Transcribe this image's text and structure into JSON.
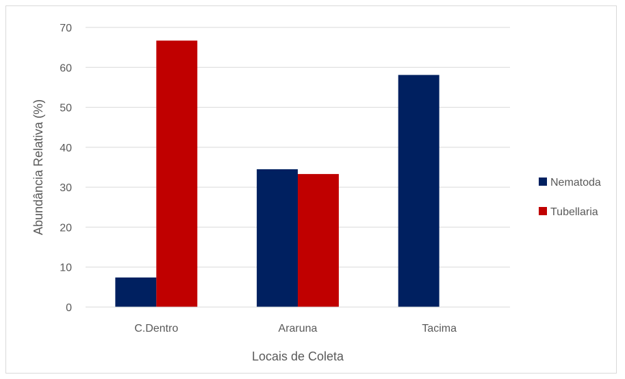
{
  "chart_data": {
    "type": "bar",
    "title": "",
    "xlabel": "Locais de Coleta",
    "ylabel": "Abundância Relativa (%)",
    "categories": [
      "C.Dentro",
      "Araruna",
      "Tacima"
    ],
    "series": [
      {
        "name": "Nematoda",
        "color": "#002060",
        "values": [
          7.4,
          34.5,
          58.1
        ]
      },
      {
        "name": "Tubellaria",
        "color": "#C00000",
        "values": [
          66.7,
          33.3,
          0
        ]
      }
    ],
    "ylim": [
      0,
      70
    ],
    "yticks": [
      0,
      10,
      20,
      30,
      40,
      50,
      60,
      70
    ],
    "grid": true,
    "legend_position": "right"
  }
}
